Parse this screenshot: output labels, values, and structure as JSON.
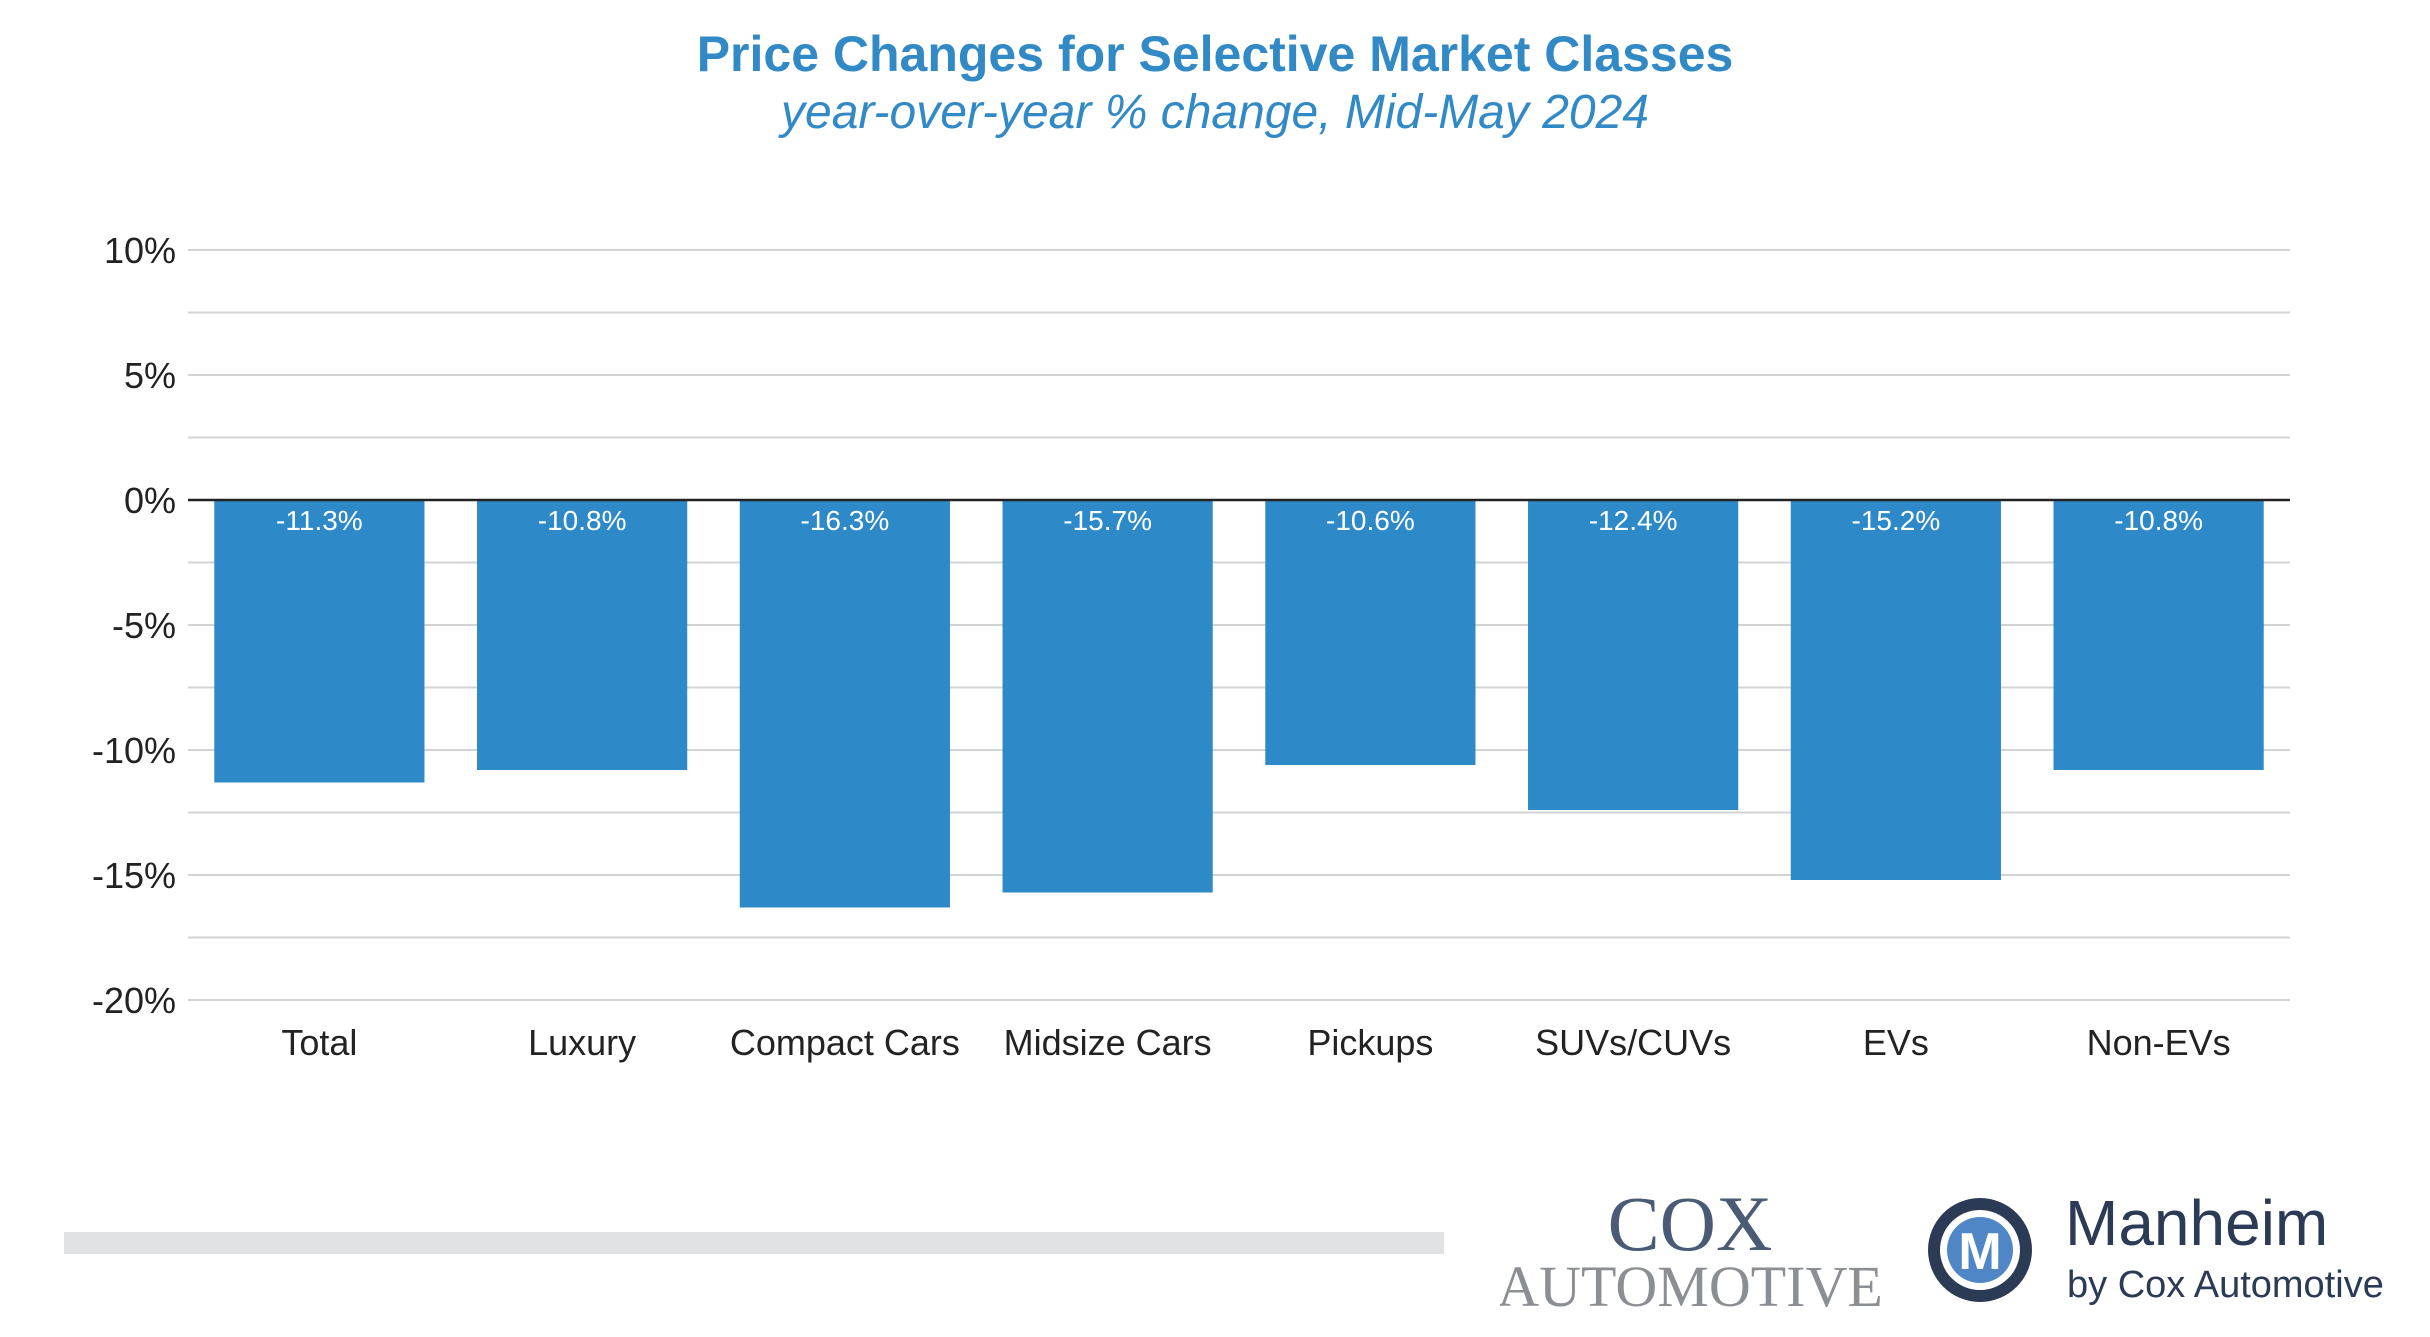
{
  "chart_data": {
    "type": "bar",
    "title": "Price Changes for Selective Market Classes",
    "subtitle": "year-over-year % change, Mid-May 2024",
    "categories": [
      "Total",
      "Luxury",
      "Compact Cars",
      "Midsize Cars",
      "Pickups",
      "SUVs/CUVs",
      "EVs",
      "Non-EVs"
    ],
    "values": [
      -11.3,
      -10.8,
      -16.3,
      -15.7,
      -10.6,
      -12.4,
      -15.2,
      -10.8
    ],
    "data_labels": [
      "-11.3%",
      "-10.8%",
      "-16.3%",
      "-15.7%",
      "-10.6%",
      "-12.4%",
      "-15.2%",
      "-10.8%"
    ],
    "ylim": [
      -20,
      10
    ],
    "yticks": [
      10,
      5,
      0,
      -5,
      -10,
      -15,
      -20
    ],
    "ytick_labels": [
      "10%",
      "5%",
      "0%",
      "-5%",
      "-10%",
      "-15%",
      "-20%"
    ],
    "grid": true,
    "bar_color": "#2e89c8",
    "grid_color": "#d3d3d3"
  },
  "logos": {
    "cox_line1": "COX",
    "cox_line2": "AUTOMOTIVE",
    "manheim_name": "Manheim",
    "manheim_tagline": "by Cox Automotive",
    "manheim_mark": "M"
  },
  "colors": {
    "title": "#3189c5",
    "cox_logo": "#4a5b76",
    "manheim_logo": "#2b3a55"
  }
}
